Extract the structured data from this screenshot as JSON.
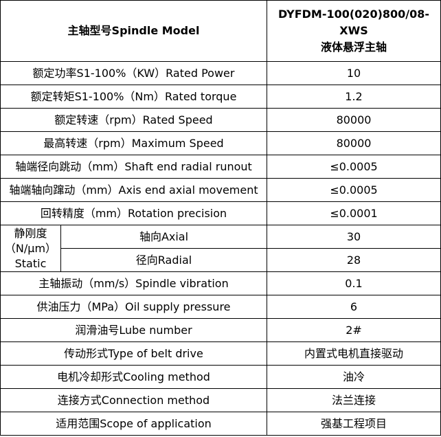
{
  "header": {
    "label": "主轴型号Spindle Model",
    "model": "DYFDM-100(020)800/08-XWS",
    "model_desc": "液体悬浮主轴"
  },
  "rows": [
    {
      "label": "额定功率S1-100%（KW）Rated Power",
      "value": "10"
    },
    {
      "label": "额定转矩S1-100%（Nm）Rated torque",
      "value": "1.2"
    },
    {
      "label": "额定转速（rpm）Rated Speed",
      "value": "80000"
    },
    {
      "label": "最高转速（rpm）Maximum Speed",
      "value": "80000"
    },
    {
      "label": "轴端径向跳动（mm）Shaft end radial runout",
      "value": "≤0.0005"
    },
    {
      "label": "轴端轴向蹿动（mm）Axis end axial movement",
      "value": "≤0.0005"
    },
    {
      "label": "回转精度（mm）Rotation precision",
      "value": "≤0.0001"
    }
  ],
  "stiffness": {
    "label": "静刚度（N/μm）Static",
    "axial_label": "轴向Axial",
    "axial_value": "30",
    "radial_label": "径向Radial",
    "radial_value": "28"
  },
  "rows2": [
    {
      "label": "主轴振动（mm/s）Spindle vibration",
      "value": "0.1"
    },
    {
      "label": "供油压力（MPa）Oil supply pressure",
      "value": "6"
    },
    {
      "label": "润滑油号Lube number",
      "value": "2#"
    },
    {
      "label": "传动形式Type of belt drive",
      "value": "内置式电机直接驱动"
    },
    {
      "label": "电机冷却形式Cooling method",
      "value": "油冷"
    },
    {
      "label": "连接方式Connection method",
      "value": "法兰连接"
    },
    {
      "label": "适用范围Scope of application",
      "value": "强基工程项目"
    }
  ]
}
